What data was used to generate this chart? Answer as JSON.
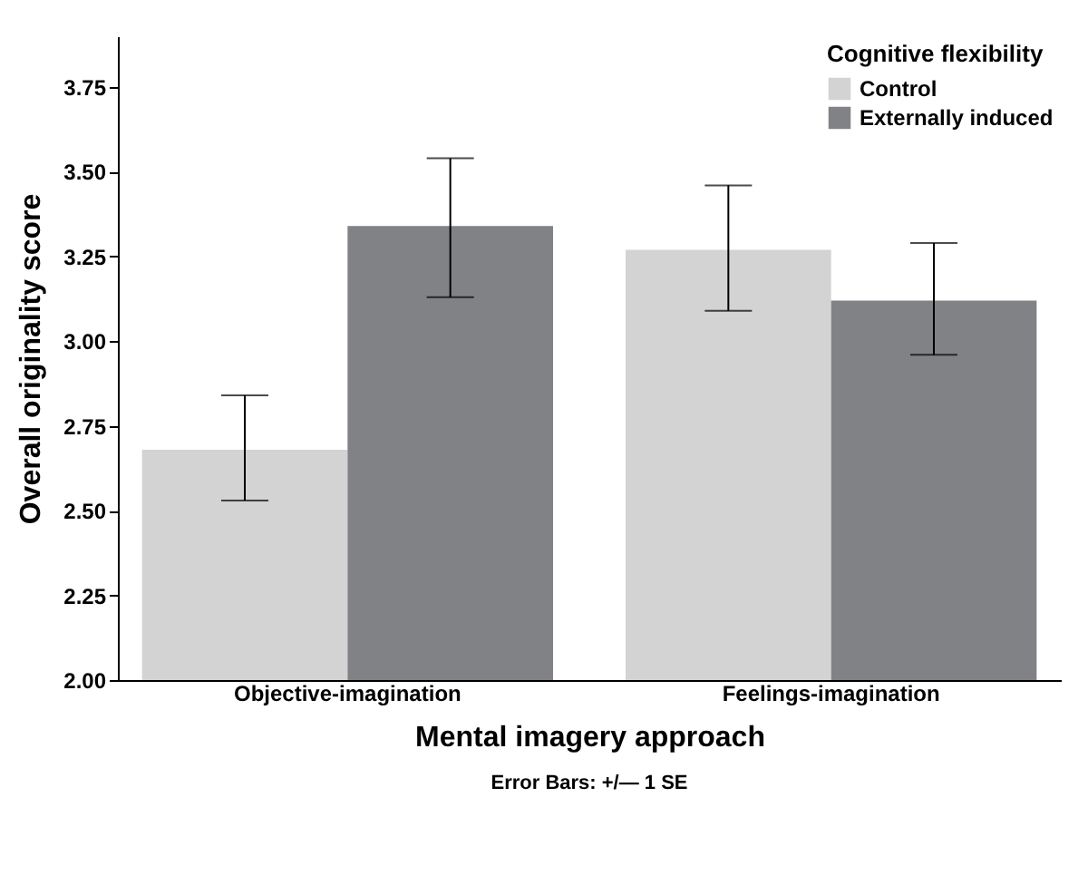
{
  "chart_data": {
    "type": "bar",
    "xlabel": "Mental imagery approach",
    "ylabel": "Overall originality score",
    "legend_title": "Cognitive flexibility",
    "legend": "top right",
    "grid": false,
    "categories": [
      "Objective-imagination",
      "Feelings-imagination"
    ],
    "series": [
      {
        "name": "Control",
        "color": "#d3d3d3",
        "values": [
          2.68,
          3.27
        ],
        "errors": [
          [
            2.53,
            2.84
          ],
          [
            3.09,
            3.46
          ]
        ]
      },
      {
        "name": "Externally induced",
        "color": "#808285",
        "values": [
          3.34,
          3.12
        ],
        "errors": [
          [
            3.13,
            3.54
          ],
          [
            2.96,
            3.29
          ]
        ]
      }
    ],
    "ylim": [
      2,
      3.9
    ],
    "yticks": [
      {
        "value": 2,
        "label": "2.00"
      },
      {
        "value": 2.25,
        "label": "2.25"
      },
      {
        "value": 2.5,
        "label": "2.50"
      },
      {
        "value": 2.75,
        "label": "2.75"
      },
      {
        "value": 3,
        "label": "3.00"
      },
      {
        "value": 3.25,
        "label": "3.25"
      },
      {
        "value": 3.5,
        "label": "3.50"
      },
      {
        "value": 3.75,
        "label": "3.75"
      }
    ],
    "annotations": [
      "Error Bars: +/— 1 SE"
    ]
  }
}
